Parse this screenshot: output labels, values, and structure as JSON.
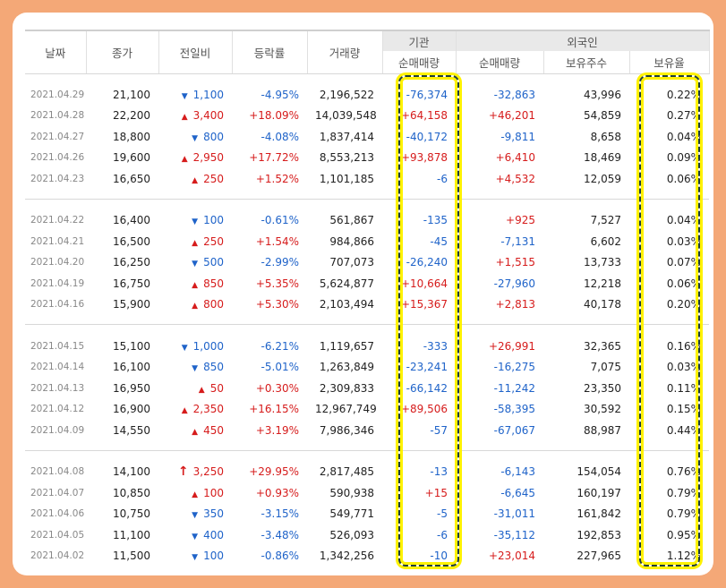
{
  "headers": {
    "date": "날짜",
    "close": "종가",
    "change": "전일비",
    "rate": "등락률",
    "volume": "거래량",
    "inst_group": "기관",
    "foreign_group": "외국인",
    "inst_net": "순매매량",
    "foreign_net": "순매매량",
    "foreign_holdings": "보유주수",
    "foreign_ratio": "보유율"
  },
  "highlight_color": "#fff200",
  "groups": [
    {
      "rows": [
        {
          "date": "2021.04.29",
          "close": "21,100",
          "dir": "down",
          "change": "1,100",
          "rate": "-4.95%",
          "volume": "2,196,522",
          "inst": "-76,374",
          "foreign": "-32,863",
          "holdings": "43,996",
          "ratio": "0.22%"
        },
        {
          "date": "2021.04.28",
          "close": "22,200",
          "dir": "up",
          "change": "3,400",
          "rate": "+18.09%",
          "volume": "14,039,548",
          "inst": "+64,158",
          "foreign": "+46,201",
          "holdings": "54,859",
          "ratio": "0.27%"
        },
        {
          "date": "2021.04.27",
          "close": "18,800",
          "dir": "down",
          "change": "800",
          "rate": "-4.08%",
          "volume": "1,837,414",
          "inst": "-40,172",
          "foreign": "-9,811",
          "holdings": "8,658",
          "ratio": "0.04%"
        },
        {
          "date": "2021.04.26",
          "close": "19,600",
          "dir": "up",
          "change": "2,950",
          "rate": "+17.72%",
          "volume": "8,553,213",
          "inst": "+93,878",
          "foreign": "+6,410",
          "holdings": "18,469",
          "ratio": "0.09%"
        },
        {
          "date": "2021.04.23",
          "close": "16,650",
          "dir": "up",
          "change": "250",
          "rate": "+1.52%",
          "volume": "1,101,185",
          "inst": "-6",
          "foreign": "+4,532",
          "holdings": "12,059",
          "ratio": "0.06%"
        }
      ]
    },
    {
      "rows": [
        {
          "date": "2021.04.22",
          "close": "16,400",
          "dir": "down",
          "change": "100",
          "rate": "-0.61%",
          "volume": "561,867",
          "inst": "-135",
          "foreign": "+925",
          "holdings": "7,527",
          "ratio": "0.04%"
        },
        {
          "date": "2021.04.21",
          "close": "16,500",
          "dir": "up",
          "change": "250",
          "rate": "+1.54%",
          "volume": "984,866",
          "inst": "-45",
          "foreign": "-7,131",
          "holdings": "6,602",
          "ratio": "0.03%"
        },
        {
          "date": "2021.04.20",
          "close": "16,250",
          "dir": "down",
          "change": "500",
          "rate": "-2.99%",
          "volume": "707,073",
          "inst": "-26,240",
          "foreign": "+1,515",
          "holdings": "13,733",
          "ratio": "0.07%"
        },
        {
          "date": "2021.04.19",
          "close": "16,750",
          "dir": "up",
          "change": "850",
          "rate": "+5.35%",
          "volume": "5,624,877",
          "inst": "+10,664",
          "foreign": "-27,960",
          "holdings": "12,218",
          "ratio": "0.06%"
        },
        {
          "date": "2021.04.16",
          "close": "15,900",
          "dir": "up",
          "change": "800",
          "rate": "+5.30%",
          "volume": "2,103,494",
          "inst": "+15,367",
          "foreign": "+2,813",
          "holdings": "40,178",
          "ratio": "0.20%"
        }
      ]
    },
    {
      "rows": [
        {
          "date": "2021.04.15",
          "close": "15,100",
          "dir": "down",
          "change": "1,000",
          "rate": "-6.21%",
          "volume": "1,119,657",
          "inst": "-333",
          "foreign": "+26,991",
          "holdings": "32,365",
          "ratio": "0.16%"
        },
        {
          "date": "2021.04.14",
          "close": "16,100",
          "dir": "down",
          "change": "850",
          "rate": "-5.01%",
          "volume": "1,263,849",
          "inst": "-23,241",
          "foreign": "-16,275",
          "holdings": "7,075",
          "ratio": "0.03%"
        },
        {
          "date": "2021.04.13",
          "close": "16,950",
          "dir": "up",
          "change": "50",
          "rate": "+0.30%",
          "volume": "2,309,833",
          "inst": "-66,142",
          "foreign": "-11,242",
          "holdings": "23,350",
          "ratio": "0.11%"
        },
        {
          "date": "2021.04.12",
          "close": "16,900",
          "dir": "up",
          "change": "2,350",
          "rate": "+16.15%",
          "volume": "12,967,749",
          "inst": "+89,506",
          "foreign": "-58,395",
          "holdings": "30,592",
          "ratio": "0.15%"
        },
        {
          "date": "2021.04.09",
          "close": "14,550",
          "dir": "up",
          "change": "450",
          "rate": "+3.19%",
          "volume": "7,986,346",
          "inst": "-57",
          "foreign": "-67,067",
          "holdings": "88,987",
          "ratio": "0.44%"
        }
      ]
    },
    {
      "rows": [
        {
          "date": "2021.04.08",
          "close": "14,100",
          "dir": "limitup",
          "change": "3,250",
          "rate": "+29.95%",
          "volume": "2,817,485",
          "inst": "-13",
          "foreign": "-6,143",
          "holdings": "154,054",
          "ratio": "0.76%"
        },
        {
          "date": "2021.04.07",
          "close": "10,850",
          "dir": "up",
          "change": "100",
          "rate": "+0.93%",
          "volume": "590,938",
          "inst": "+15",
          "foreign": "-6,645",
          "holdings": "160,197",
          "ratio": "0.79%"
        },
        {
          "date": "2021.04.06",
          "close": "10,750",
          "dir": "down",
          "change": "350",
          "rate": "-3.15%",
          "volume": "549,771",
          "inst": "-5",
          "foreign": "-31,011",
          "holdings": "161,842",
          "ratio": "0.79%"
        },
        {
          "date": "2021.04.05",
          "close": "11,100",
          "dir": "down",
          "change": "400",
          "rate": "-3.48%",
          "volume": "526,093",
          "inst": "-6",
          "foreign": "-35,112",
          "holdings": "192,853",
          "ratio": "0.95%"
        },
        {
          "date": "2021.04.02",
          "close": "11,500",
          "dir": "down",
          "change": "100",
          "rate": "-0.86%",
          "volume": "1,342,256",
          "inst": "-10",
          "foreign": "+23,014",
          "holdings": "227,965",
          "ratio": "1.12%"
        }
      ]
    }
  ]
}
